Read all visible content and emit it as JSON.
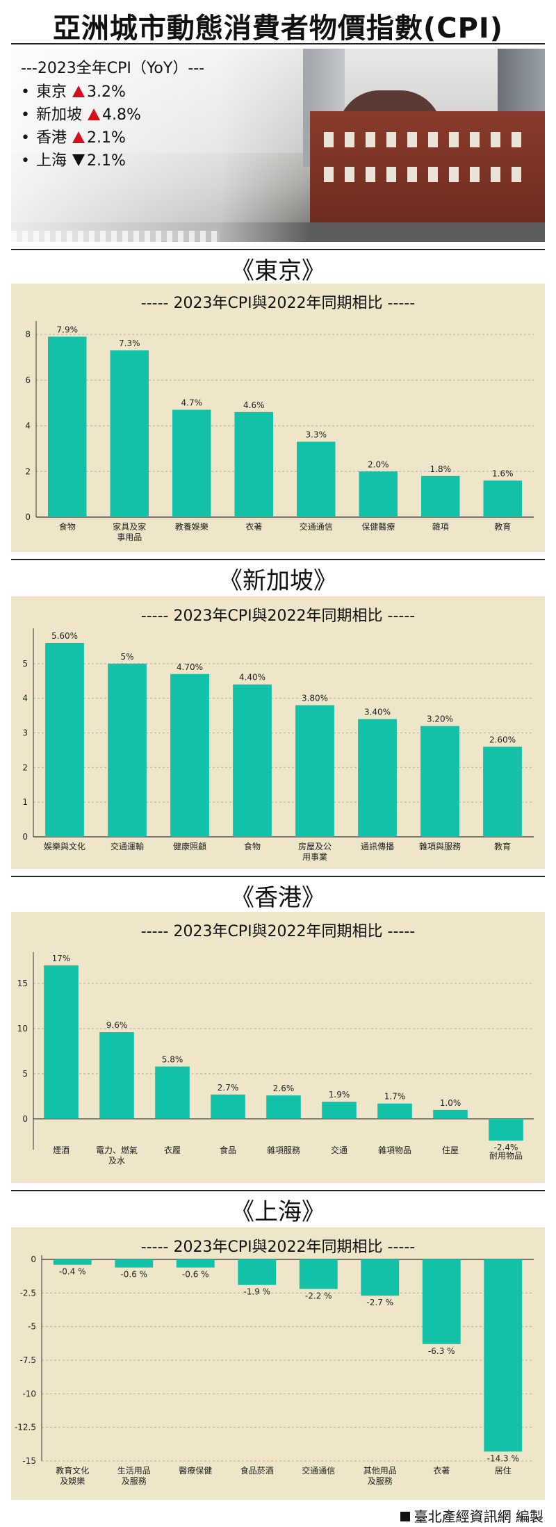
{
  "header": {
    "title": "亞洲城市動態消費者物價指數(CPI)"
  },
  "summary": {
    "heading": "---2023全年CPI（YoY）---",
    "items": [
      {
        "city": "東京",
        "direction": "up",
        "value": "3.2%"
      },
      {
        "city": "新加坡",
        "direction": "up",
        "value": "4.8%"
      },
      {
        "city": "香港",
        "direction": "up",
        "value": "2.1%"
      },
      {
        "city": "上海",
        "direction": "down",
        "value": "2.1%"
      }
    ]
  },
  "colors": {
    "bar": "#13c1a8",
    "panel": "#efe5c8",
    "up": "#d0111b",
    "down": "#111111"
  },
  "sections": [
    {
      "title": "《東京》",
      "subtitle": "----- 2023年CPI與2022年同期相比 -----"
    },
    {
      "title": "《新加坡》",
      "subtitle": "----- 2023年CPI與2022年同期相比 -----"
    },
    {
      "title": "《香港》",
      "subtitle": "----- 2023年CPI與2022年同期相比 -----"
    },
    {
      "title": "《上海》",
      "subtitle": "----- 2023年CPI與2022年同期相比 -----"
    }
  ],
  "chart_data": [
    {
      "type": "bar",
      "title": "----- 2023年CPI與2022年同期相比 -----",
      "categories": [
        "食物",
        "家具及家\n事用品",
        "教養娛樂",
        "衣著",
        "交通通信",
        "保健醫療",
        "雜項",
        "教育"
      ],
      "values": [
        7.9,
        7.3,
        4.7,
        4.6,
        3.3,
        2.0,
        1.8,
        1.6
      ],
      "labels": [
        "7.9%",
        "7.3%",
        "4.7%",
        "4.6%",
        "3.3%",
        "2.0%",
        "1.8%",
        "1.6%"
      ],
      "ylim": [
        0,
        8.4
      ],
      "yticks": [
        "0",
        "2",
        "4",
        "6",
        "8"
      ],
      "ytick_values": [
        0,
        2,
        4,
        6,
        8
      ],
      "grid": true
    },
    {
      "type": "bar",
      "title": "----- 2023年CPI與2022年同期相比 -----",
      "categories": [
        "娛樂與文化",
        "交通運輸",
        "健康照顧",
        "食物",
        "房屋及公\n用事業",
        "通訊傳播",
        "雜項與服務",
        "教育"
      ],
      "values": [
        5.6,
        5.0,
        4.7,
        4.4,
        3.8,
        3.4,
        3.2,
        2.6
      ],
      "labels": [
        "5.60%",
        "5%",
        "4.70%",
        "4.40%",
        "3.80%",
        "3.40%",
        "3.20%",
        "2.60%"
      ],
      "ylim": [
        0,
        5.9
      ],
      "yticks": [
        "0",
        "1",
        "2",
        "3",
        "4",
        "5"
      ],
      "ytick_values": [
        0,
        1,
        2,
        3,
        4,
        5
      ],
      "grid": true
    },
    {
      "type": "bar",
      "title": "----- 2023年CPI與2022年同期相比 -----",
      "categories": [
        "煙酒",
        "電力、燃氣\n及水",
        "衣履",
        "食品",
        "雜項服務",
        "交通",
        "雜項物品",
        "住屋",
        "耐用物品"
      ],
      "values": [
        17,
        9.6,
        5.8,
        2.7,
        2.6,
        1.9,
        1.7,
        1.0,
        -2.4
      ],
      "labels": [
        "17%",
        "9.6%",
        "5.8%",
        "2.7%",
        "2.6%",
        "1.9%",
        "1.7%",
        "1.0%",
        "-2.4%"
      ],
      "ylim": [
        -3.4,
        18
      ],
      "yticks": [
        "0",
        "5",
        "10",
        "15"
      ],
      "ytick_values": [
        0,
        5,
        10,
        15
      ],
      "grid": true
    },
    {
      "type": "bar",
      "title": "----- 2023年CPI與2022年同期相比 -----",
      "categories": [
        "教育文化\n及娛樂",
        "生活用品\n及服務",
        "醫療保健",
        "食品菸酒",
        "交通通信",
        "其他用品\n及服務",
        "衣著",
        "居住"
      ],
      "values": [
        -0.4,
        -0.6,
        -0.6,
        -1.9,
        -2.2,
        -2.7,
        -6.3,
        -14.3
      ],
      "labels": [
        "-0.4 %",
        "-0.6 %",
        "-0.6 %",
        "-1.9 %",
        "-2.2 %",
        "-2.7 %",
        "-6.3 %",
        "-14.3 %"
      ],
      "ylim": [
        -15,
        0
      ],
      "yticks": [
        "0",
        "-2.5",
        "-5",
        "-7.5",
        "-10",
        "-12.5",
        "-15"
      ],
      "ytick_values": [
        0,
        -2.5,
        -5,
        -7.5,
        -10,
        -12.5,
        -15
      ],
      "grid": true
    }
  ],
  "footer": {
    "credit": "臺北產經資訊網 編製"
  }
}
